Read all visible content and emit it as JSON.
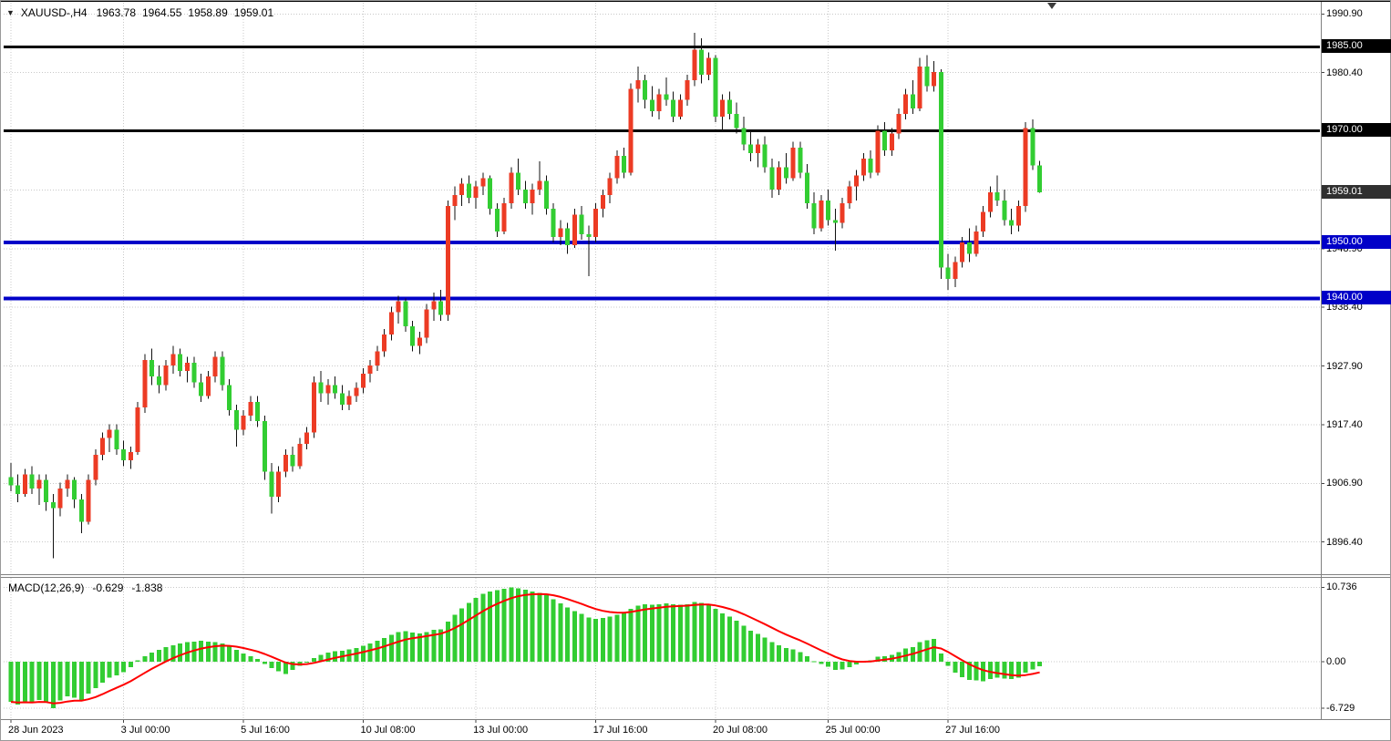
{
  "header": {
    "collapse_icon": "▼",
    "symbol": "XAUUSD-,H4",
    "open": "1963.78",
    "high": "1964.55",
    "low": "1958.89",
    "close": "1959.01"
  },
  "macd": {
    "title": "MACD(12,26,9)",
    "main_value": "-0.629",
    "signal_value": "-1.838",
    "ticks": [
      {
        "value": 10.736,
        "label": "10.736"
      },
      {
        "value": 0,
        "label": "0.00"
      },
      {
        "value": -6.729,
        "label": "-6.729"
      }
    ]
  },
  "colors": {
    "background": "#ffffff",
    "grid": "#c8c8c8",
    "bull": "#ec3b24",
    "bear": "#32cd32",
    "wick": "#111111",
    "macd_histogram": "#32cd32",
    "macd_signal": "#ff0000",
    "level_black": "#000000",
    "level_blue": "#0000c8",
    "current_badge": "#303030",
    "frame": "#808080",
    "axis_text": "#000000"
  },
  "chart_data": {
    "type": "candlestick+macd",
    "title": "XAUUSD- H4 candlestick chart with MACD(12,26,9) indicator",
    "price_axis": {
      "ylim": [
        1890.8,
        1992.9
      ],
      "ticks": [
        {
          "value": 1990.9,
          "label": "1990.90"
        },
        {
          "value": 1980.4,
          "label": "1980.40"
        },
        {
          "value": 1969.9,
          "label": "1969.90"
        },
        {
          "value": 1959.4,
          "label": "1959.40"
        },
        {
          "value": 1948.9,
          "label": "1948.90"
        },
        {
          "value": 1938.4,
          "label": "1938.40"
        },
        {
          "value": 1927.9,
          "label": "1927.90"
        },
        {
          "value": 1917.4,
          "label": "1917.40"
        },
        {
          "value": 1906.9,
          "label": "1906.90"
        },
        {
          "value": 1896.4,
          "label": "1896.40"
        }
      ]
    },
    "levels": [
      {
        "value": 1985.0,
        "label": "1985.00",
        "color": "#000000",
        "width": 3
      },
      {
        "value": 1970.0,
        "label": "1970.00",
        "color": "#000000",
        "width": 3
      },
      {
        "value": 1950.0,
        "label": "1950.00",
        "color": "#0000c8",
        "width": 4
      },
      {
        "value": 1940.0,
        "label": "1940.00",
        "color": "#0000c8",
        "width": 4
      }
    ],
    "current_price": {
      "value": 1959.01,
      "label": "1959.01"
    },
    "time_axis": {
      "ticks": [
        {
          "index": 0,
          "label": "28 Jun 2023"
        },
        {
          "index": 16,
          "label": "3 Jul 00:00"
        },
        {
          "index": 33,
          "label": "5 Jul 16:00"
        },
        {
          "index": 50,
          "label": "10 Jul 08:00"
        },
        {
          "index": 66,
          "label": "13 Jul 00:00"
        },
        {
          "index": 83,
          "label": "17 Jul 16:00"
        },
        {
          "index": 100,
          "label": "20 Jul 08:00"
        },
        {
          "index": 116,
          "label": "25 Jul 00:00"
        },
        {
          "index": 133,
          "label": "27 Jul 16:00"
        }
      ]
    },
    "candles_ohlc": [
      [
        1908.0,
        1910.5,
        1905.5,
        1906.5
      ],
      [
        1906.5,
        1908.5,
        1903.5,
        1905.0
      ],
      [
        1905.0,
        1909.5,
        1904.5,
        1908.5
      ],
      [
        1908.5,
        1910.0,
        1905.0,
        1906.0
      ],
      [
        1906.0,
        1908.5,
        1903.0,
        1907.5
      ],
      [
        1907.5,
        1908.5,
        1902.0,
        1903.5
      ],
      [
        1903.5,
        1905.0,
        1893.5,
        1902.5
      ],
      [
        1902.5,
        1907.0,
        1901.0,
        1906.0
      ],
      [
        1906.0,
        1908.5,
        1904.5,
        1907.5
      ],
      [
        1907.5,
        1908.0,
        1902.5,
        1904.0
      ],
      [
        1904.0,
        1905.0,
        1898.0,
        1900.0
      ],
      [
        1900.0,
        1908.5,
        1899.5,
        1907.5
      ],
      [
        1907.5,
        1913.0,
        1906.5,
        1912.0
      ],
      [
        1912.0,
        1916.0,
        1911.0,
        1915.0
      ],
      [
        1915.0,
        1917.5,
        1912.5,
        1916.5
      ],
      [
        1916.5,
        1917.5,
        1912.0,
        1913.0
      ],
      [
        1913.0,
        1914.5,
        1910.0,
        1911.0
      ],
      [
        1911.0,
        1913.5,
        1909.5,
        1912.5
      ],
      [
        1912.5,
        1921.5,
        1912.0,
        1920.5
      ],
      [
        1920.5,
        1930.0,
        1919.5,
        1929.0
      ],
      [
        1929.0,
        1931.0,
        1924.5,
        1926.0
      ],
      [
        1926.0,
        1928.0,
        1923.0,
        1924.5
      ],
      [
        1924.5,
        1929.0,
        1923.5,
        1928.0
      ],
      [
        1928.0,
        1931.5,
        1926.5,
        1930.0
      ],
      [
        1930.0,
        1931.0,
        1926.0,
        1927.0
      ],
      [
        1927.0,
        1929.5,
        1925.0,
        1928.5
      ],
      [
        1928.5,
        1929.5,
        1924.0,
        1925.0
      ],
      [
        1925.0,
        1926.5,
        1921.5,
        1922.5
      ],
      [
        1922.5,
        1927.0,
        1922.0,
        1926.0
      ],
      [
        1926.0,
        1930.5,
        1925.0,
        1929.5
      ],
      [
        1929.5,
        1930.5,
        1923.5,
        1924.5
      ],
      [
        1924.5,
        1925.5,
        1919.0,
        1920.0
      ],
      [
        1920.0,
        1921.0,
        1913.5,
        1916.5
      ],
      [
        1916.5,
        1920.0,
        1915.5,
        1919.0
      ],
      [
        1919.0,
        1922.5,
        1918.0,
        1921.5
      ],
      [
        1921.5,
        1922.5,
        1917.0,
        1918.0
      ],
      [
        1918.0,
        1919.0,
        1907.5,
        1909.0
      ],
      [
        1909.0,
        1910.5,
        1901.5,
        1904.5
      ],
      [
        1904.5,
        1910.0,
        1903.5,
        1909.0
      ],
      [
        1909.0,
        1913.0,
        1908.0,
        1912.0
      ],
      [
        1912.0,
        1913.5,
        1909.0,
        1910.0
      ],
      [
        1910.0,
        1915.0,
        1909.5,
        1914.0
      ],
      [
        1914.0,
        1917.0,
        1913.0,
        1916.0
      ],
      [
        1916.0,
        1926.0,
        1915.0,
        1925.0
      ],
      [
        1925.0,
        1927.0,
        1921.5,
        1923.0
      ],
      [
        1923.0,
        1925.5,
        1921.0,
        1924.5
      ],
      [
        1924.5,
        1926.0,
        1922.0,
        1923.0
      ],
      [
        1923.0,
        1924.5,
        1920.0,
        1921.0
      ],
      [
        1921.0,
        1923.5,
        1920.0,
        1922.5
      ],
      [
        1922.5,
        1925.0,
        1921.5,
        1924.0
      ],
      [
        1924.0,
        1927.5,
        1923.0,
        1926.5
      ],
      [
        1926.5,
        1929.0,
        1925.0,
        1928.0
      ],
      [
        1928.0,
        1931.5,
        1927.0,
        1930.5
      ],
      [
        1930.5,
        1934.5,
        1929.5,
        1933.5
      ],
      [
        1933.5,
        1938.5,
        1932.5,
        1937.5
      ],
      [
        1937.5,
        1940.5,
        1935.5,
        1939.5
      ],
      [
        1939.5,
        1940.0,
        1934.0,
        1935.0
      ],
      [
        1935.0,
        1936.0,
        1930.5,
        1931.5
      ],
      [
        1931.5,
        1934.0,
        1930.0,
        1933.0
      ],
      [
        1933.0,
        1939.0,
        1932.0,
        1938.0
      ],
      [
        1938.0,
        1941.0,
        1936.0,
        1939.5
      ],
      [
        1939.5,
        1941.5,
        1936.0,
        1937.0
      ],
      [
        1937.0,
        1957.5,
        1936.0,
        1956.5
      ],
      [
        1956.5,
        1960.0,
        1954.0,
        1958.5
      ],
      [
        1958.5,
        1961.5,
        1956.5,
        1960.5
      ],
      [
        1960.5,
        1962.0,
        1957.0,
        1958.0
      ],
      [
        1958.0,
        1961.0,
        1956.0,
        1960.0
      ],
      [
        1960.0,
        1962.5,
        1958.5,
        1961.5
      ],
      [
        1961.5,
        1962.0,
        1955.0,
        1956.0
      ],
      [
        1956.0,
        1957.0,
        1951.0,
        1952.0
      ],
      [
        1952.0,
        1958.0,
        1951.5,
        1957.0
      ],
      [
        1957.0,
        1963.5,
        1956.0,
        1962.5
      ],
      [
        1962.5,
        1965.0,
        1958.5,
        1959.5
      ],
      [
        1959.5,
        1961.0,
        1956.0,
        1957.0
      ],
      [
        1957.0,
        1960.5,
        1955.0,
        1959.5
      ],
      [
        1959.5,
        1964.5,
        1958.5,
        1961.0
      ],
      [
        1961.0,
        1962.0,
        1955.0,
        1956.0
      ],
      [
        1956.0,
        1957.0,
        1950.0,
        1951.0
      ],
      [
        1951.0,
        1954.0,
        1949.5,
        1952.5
      ],
      [
        1952.5,
        1953.5,
        1948.0,
        1949.5
      ],
      [
        1949.5,
        1956.0,
        1949.0,
        1955.0
      ],
      [
        1955.0,
        1956.5,
        1950.5,
        1951.5
      ],
      [
        1951.5,
        1953.0,
        1944.0,
        1951.0
      ],
      [
        1951.0,
        1957.0,
        1950.0,
        1956.0
      ],
      [
        1956.0,
        1959.5,
        1954.5,
        1958.5
      ],
      [
        1958.5,
        1962.5,
        1957.0,
        1961.5
      ],
      [
        1961.5,
        1966.5,
        1960.5,
        1965.5
      ],
      [
        1965.5,
        1967.0,
        1961.5,
        1962.5
      ],
      [
        1962.5,
        1978.5,
        1962.0,
        1977.5
      ],
      [
        1977.5,
        1981.5,
        1975.0,
        1979.0
      ],
      [
        1979.0,
        1980.0,
        1974.0,
        1975.5
      ],
      [
        1975.5,
        1978.0,
        1972.5,
        1973.5
      ],
      [
        1973.5,
        1977.5,
        1972.0,
        1976.5
      ],
      [
        1976.5,
        1979.5,
        1974.5,
        1975.5
      ],
      [
        1975.5,
        1977.0,
        1971.5,
        1972.5
      ],
      [
        1972.5,
        1976.5,
        1972.0,
        1975.5
      ],
      [
        1975.5,
        1980.0,
        1974.5,
        1979.0
      ],
      [
        1979.0,
        1987.5,
        1978.0,
        1984.5
      ],
      [
        1984.5,
        1986.5,
        1978.5,
        1980.0
      ],
      [
        1980.0,
        1984.0,
        1979.0,
        1983.0
      ],
      [
        1983.0,
        1983.5,
        1971.5,
        1972.5
      ],
      [
        1972.5,
        1976.5,
        1970.0,
        1975.5
      ],
      [
        1975.5,
        1977.0,
        1972.0,
        1973.0
      ],
      [
        1973.0,
        1975.0,
        1969.5,
        1970.5
      ],
      [
        1970.5,
        1972.5,
        1966.5,
        1967.5
      ],
      [
        1967.5,
        1970.0,
        1964.5,
        1966.0
      ],
      [
        1966.0,
        1968.5,
        1963.5,
        1967.5
      ],
      [
        1967.5,
        1969.0,
        1962.5,
        1963.5
      ],
      [
        1963.5,
        1965.0,
        1958.0,
        1959.5
      ],
      [
        1959.5,
        1964.5,
        1958.5,
        1963.5
      ],
      [
        1963.5,
        1966.0,
        1960.5,
        1961.5
      ],
      [
        1961.5,
        1968.0,
        1961.0,
        1967.0
      ],
      [
        1967.0,
        1968.0,
        1961.5,
        1962.5
      ],
      [
        1962.5,
        1964.0,
        1956.0,
        1957.0
      ],
      [
        1957.0,
        1959.0,
        1951.5,
        1952.5
      ],
      [
        1952.5,
        1958.5,
        1952.0,
        1957.5
      ],
      [
        1957.5,
        1959.5,
        1953.0,
        1954.0
      ],
      [
        1954.0,
        1956.0,
        1948.5,
        1953.5
      ],
      [
        1953.5,
        1958.0,
        1952.5,
        1957.0
      ],
      [
        1957.0,
        1961.0,
        1956.0,
        1960.0
      ],
      [
        1960.0,
        1963.0,
        1957.5,
        1962.0
      ],
      [
        1962.0,
        1966.0,
        1961.0,
        1965.0
      ],
      [
        1965.0,
        1966.5,
        1961.5,
        1962.5
      ],
      [
        1962.5,
        1971.0,
        1962.0,
        1970.0
      ],
      [
        1970.0,
        1971.5,
        1965.5,
        1966.5
      ],
      [
        1966.5,
        1970.5,
        1965.5,
        1969.5
      ],
      [
        1969.5,
        1974.0,
        1968.5,
        1973.0
      ],
      [
        1973.0,
        1977.5,
        1972.0,
        1976.5
      ],
      [
        1976.5,
        1979.0,
        1973.0,
        1974.0
      ],
      [
        1974.0,
        1983.0,
        1973.5,
        1981.5
      ],
      [
        1981.5,
        1983.5,
        1977.0,
        1978.0
      ],
      [
        1978.0,
        1982.5,
        1977.0,
        1980.5
      ],
      [
        1980.5,
        1981.0,
        1943.5,
        1945.5
      ],
      [
        1945.5,
        1948.0,
        1941.5,
        1943.5
      ],
      [
        1943.5,
        1947.5,
        1942.0,
        1946.5
      ],
      [
        1946.5,
        1951.0,
        1945.5,
        1950.0
      ],
      [
        1950.0,
        1952.5,
        1946.5,
        1948.0
      ],
      [
        1948.0,
        1953.0,
        1947.5,
        1952.0
      ],
      [
        1952.0,
        1956.5,
        1951.0,
        1955.5
      ],
      [
        1955.5,
        1960.0,
        1954.5,
        1959.0
      ],
      [
        1959.0,
        1962.0,
        1956.5,
        1957.5
      ],
      [
        1957.5,
        1959.5,
        1953.0,
        1954.0
      ],
      [
        1954.0,
        1956.0,
        1951.5,
        1953.0
      ],
      [
        1953.0,
        1957.5,
        1952.0,
        1956.5
      ],
      [
        1956.5,
        1971.5,
        1955.5,
        1970.5
      ],
      [
        1970.5,
        1972.0,
        1963.0,
        1963.8
      ],
      [
        1963.8,
        1964.6,
        1958.9,
        1959.0
      ]
    ],
    "macd_histogram": [
      -5.8,
      -6.2,
      -5.7,
      -6.0,
      -5.5,
      -5.9,
      -6.73,
      -5.6,
      -5.0,
      -5.2,
      -5.6,
      -4.6,
      -3.8,
      -3.0,
      -2.3,
      -2.0,
      -1.5,
      -0.8,
      0.2,
      0.8,
      1.3,
      1.7,
      2.1,
      2.4,
      2.6,
      2.8,
      2.9,
      3.0,
      2.9,
      2.8,
      2.6,
      2.2,
      1.7,
      1.2,
      0.8,
      0.4,
      -0.3,
      -0.9,
      -1.4,
      -1.8,
      -1.2,
      -0.6,
      -0.1,
      0.5,
      1.0,
      1.3,
      1.5,
      1.6,
      1.8,
      2.0,
      2.3,
      2.6,
      3.0,
      3.4,
      3.9,
      4.3,
      4.4,
      4.2,
      4.1,
      4.3,
      4.6,
      4.7,
      5.8,
      6.8,
      7.7,
      8.5,
      9.2,
      9.8,
      10.1,
      10.3,
      10.5,
      10.736,
      10.6,
      10.4,
      10.1,
      9.9,
      9.6,
      9.0,
      8.4,
      7.8,
      7.3,
      6.9,
      6.4,
      6.2,
      6.3,
      6.5,
      6.8,
      7.0,
      7.6,
      8.1,
      8.3,
      8.2,
      8.3,
      8.4,
      8.3,
      8.2,
      8.3,
      8.6,
      8.5,
      8.2,
      7.6,
      7.0,
      6.5,
      5.9,
      5.2,
      4.5,
      4.0,
      3.5,
      2.8,
      2.4,
      2.0,
      1.8,
      1.4,
      0.8,
      0.1,
      -0.3,
      -0.7,
      -1.2,
      -1.1,
      -0.8,
      -0.4,
      0.0,
      0.2,
      0.7,
      0.8,
      1.0,
      1.4,
      1.9,
      2.1,
      2.8,
      3.1,
      3.3,
      1.2,
      -0.6,
      -1.6,
      -2.2,
      -2.6,
      -2.7,
      -2.8,
      -2.5,
      -2.3,
      -2.4,
      -2.5,
      -2.3,
      -1.6,
      -1.1,
      -0.629
    ],
    "macd_ylim": [
      -8.15,
      12.1
    ],
    "legend_position": "none",
    "grid": "dotted"
  }
}
